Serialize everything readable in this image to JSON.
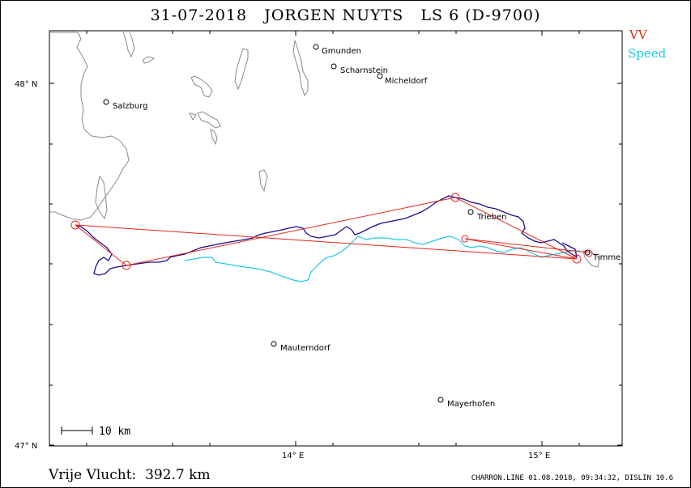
{
  "title": "31-07-2018   JORGEN NUYTS   LS 6 (D-9700)",
  "legend": [
    {
      "label": "VV",
      "color": "#e8261c"
    },
    {
      "label": "Speed",
      "color": "#1ec8e6"
    }
  ],
  "axes": {
    "lat_labels": [
      "48° N",
      "47° N"
    ],
    "lon_labels": [
      "14° E",
      "15° E"
    ]
  },
  "scale_bar": {
    "label": "10 km"
  },
  "places": [
    {
      "name": "Gmunden"
    },
    {
      "name": "Scharnstein"
    },
    {
      "name": "Micheldorf"
    },
    {
      "name": "Salzburg"
    },
    {
      "name": "Trieben"
    },
    {
      "name": "Timme"
    },
    {
      "name": "Mauterndorf"
    },
    {
      "name": "Mayerhofen"
    }
  ],
  "footer": {
    "flight": "Vrije Vlucht:  392.7 km",
    "software": "CHARRON.LINE 01.08.2018, 09:34:32, DISLIN 10.6"
  },
  "colors": {
    "track": "#1c0f8a",
    "task": "#e8261c",
    "speed": "#1ec8e6",
    "terrain": "#8a8a8a"
  }
}
